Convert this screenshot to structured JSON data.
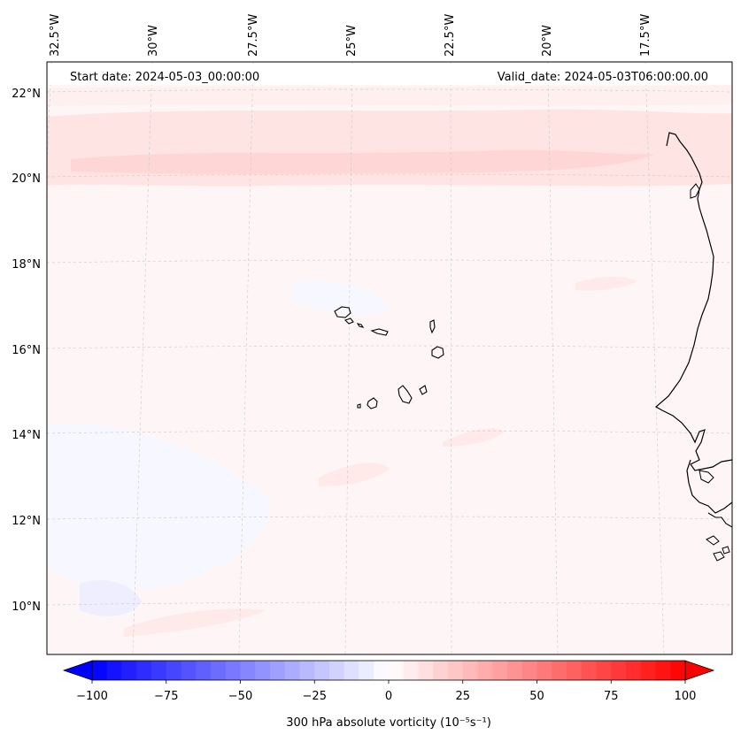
{
  "header": {
    "start_date": "Start date: 2024-05-03_00:00:00",
    "valid_date": "Valid_date: 2024-05-03T06:00:00.00"
  },
  "map": {
    "lon_labels": [
      "32.5°W",
      "30°W",
      "27.5°W",
      "25°W",
      "22.5°W",
      "20°W",
      "17.5°W"
    ],
    "lat_labels": [
      "22°N",
      "20°N",
      "18°N",
      "16°N",
      "14°N",
      "12°N",
      "10°N"
    ]
  },
  "colorbar": {
    "label": "300 hPa absolute vorticity (10⁻⁵s⁻¹)",
    "ticks": [
      "−100",
      "−75",
      "−50",
      "−25",
      "0",
      "25",
      "50",
      "75",
      "100"
    ],
    "vmin": -100,
    "vmax": 100,
    "cmap": "bwr",
    "colors": {
      "low": "#0000ff",
      "mid": "#ffffff",
      "high": "#ff0000"
    },
    "extend": "both"
  }
}
